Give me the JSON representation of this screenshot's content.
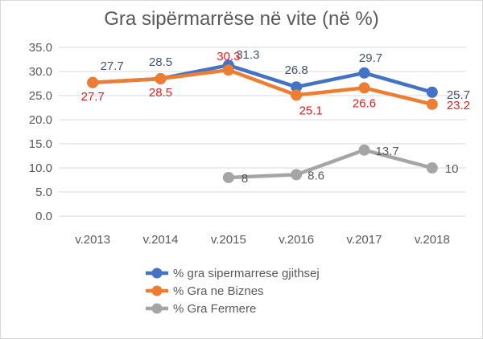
{
  "chart_data": {
    "type": "line",
    "title": "Gra sipërmarrëse në vite (në %)",
    "categories": [
      "v.2013",
      "v.2014",
      "v.2015",
      "v.2016",
      "v.2017",
      "v.2018"
    ],
    "ylim": [
      0,
      35
    ],
    "yticks": [
      "0.0",
      "5.0",
      "10.0",
      "15.0",
      "20.0",
      "25.0",
      "30.0",
      "35.0"
    ],
    "grid": true,
    "legend_position": "bottom",
    "series": [
      {
        "name": "% gra sipermarrese gjithsej",
        "color": "#4472c4",
        "label_color": "#44546a",
        "values": [
          27.7,
          28.5,
          31.3,
          26.8,
          29.7,
          25.7
        ],
        "labels": [
          "27.7",
          "28.5",
          "31.3",
          "26.8",
          "29.7",
          "25.7"
        ]
      },
      {
        "name": "% Gra ne Biznes",
        "color": "#ed7d31",
        "label_color": "#e0201b",
        "values": [
          27.7,
          28.5,
          30.3,
          25.1,
          26.6,
          23.2
        ],
        "labels": [
          "27.7",
          "28.5",
          "30.3",
          "25.1",
          "26.6",
          "23.2"
        ]
      },
      {
        "name": "% Gra Fermere",
        "color": "#a5a5a5",
        "label_color": "#595959",
        "values": [
          null,
          null,
          8,
          8.6,
          13.7,
          10
        ],
        "labels": [
          "",
          "",
          "8",
          "8.6",
          "13.7",
          "10"
        ]
      }
    ]
  }
}
